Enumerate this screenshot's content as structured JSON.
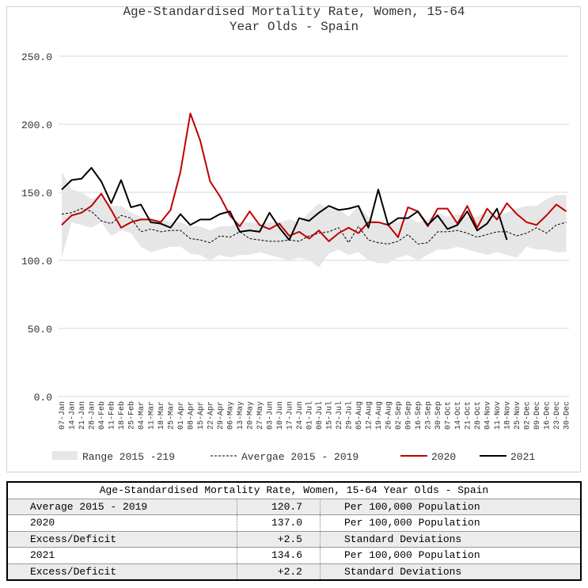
{
  "chart_data": {
    "type": "line",
    "title": "Age-Standardised Mortality Rate, Women, 15-64 Year Olds - Spain",
    "categories": [
      "07-Jan",
      "14-Jan",
      "21-Jan",
      "28-Jan",
      "04-Feb",
      "11-Feb",
      "18-Feb",
      "25-Feb",
      "04-Mar",
      "11-Mar",
      "18-Mar",
      "25-Mar",
      "01-Apr",
      "08-Apr",
      "15-Apr",
      "22-Apr",
      "29-Apr",
      "06-May",
      "13-May",
      "20-May",
      "27-May",
      "03-Jun",
      "10-Jun",
      "17-Jun",
      "24-Jun",
      "01-Jul",
      "08-Jul",
      "15-Jul",
      "22-Jul",
      "29-Jul",
      "05-Aug",
      "12-Aug",
      "19-Aug",
      "26-Aug",
      "02-Sep",
      "09-Sep",
      "16-Sep",
      "23-Sep",
      "30-Sep",
      "07-Oct",
      "14-Oct",
      "21-Oct",
      "28-Oct",
      "04-Nov",
      "11-Nov",
      "18-Nov",
      "25-Nov",
      "02-Dec",
      "09-Dec",
      "16-Dec",
      "23-Dec",
      "30-Dec"
    ],
    "series": [
      {
        "name": "Range 2015 -219",
        "type": "band",
        "color": "#e6e6e6",
        "low": [
          102,
          128,
          126,
          124,
          128,
          118,
          122,
          120,
          110,
          106,
          108,
          110,
          110,
          105,
          104,
          100,
          104,
          102,
          104,
          104,
          106,
          104,
          102,
          100,
          102,
          100,
          95,
          105,
          108,
          104,
          106,
          100,
          98,
          98,
          102,
          104,
          100,
          104,
          108,
          108,
          110,
          108,
          106,
          104,
          106,
          104,
          102,
          110,
          108,
          108,
          106,
          106
        ],
        "high": [
          165,
          152,
          150,
          145,
          148,
          140,
          140,
          135,
          132,
          130,
          130,
          128,
          128,
          125,
          125,
          122,
          125,
          125,
          128,
          128,
          127,
          128,
          128,
          130,
          128,
          135,
          142,
          138,
          138,
          132,
          140,
          132,
          128,
          128,
          128,
          132,
          128,
          130,
          135,
          132,
          134,
          132,
          132,
          136,
          133,
          135,
          138,
          140,
          140,
          145,
          148,
          148
        ]
      },
      {
        "name": "Avergae 2015 - 2019",
        "type": "line",
        "dashed": true,
        "color": "#000000",
        "values": [
          134,
          135,
          138,
          136,
          129,
          127,
          133,
          131,
          121,
          123,
          121,
          122,
          122,
          116,
          115,
          113,
          118,
          117,
          121,
          116,
          115,
          114,
          114,
          115,
          114,
          118,
          120,
          121,
          124,
          113,
          125,
          115,
          113,
          112,
          114,
          119,
          112,
          113,
          121,
          121,
          122,
          120,
          117,
          119,
          121,
          121,
          118,
          120,
          124,
          120,
          126,
          128
        ]
      },
      {
        "name": "2020",
        "type": "line",
        "color": "#c00000",
        "values": [
          126,
          133,
          135,
          140,
          149,
          137,
          124,
          128,
          130,
          130,
          128,
          137,
          165,
          208,
          188,
          158,
          147,
          133,
          125,
          136,
          126,
          123,
          127,
          118,
          121,
          116,
          122,
          114,
          120,
          124,
          120,
          128,
          128,
          126,
          117,
          139,
          136,
          125,
          138,
          138,
          127,
          140,
          124,
          138,
          130,
          142,
          134,
          128,
          126,
          133,
          141,
          136
        ]
      },
      {
        "name": "2021",
        "type": "line",
        "color": "#000000",
        "values": [
          152,
          159,
          160,
          168,
          158,
          142,
          159,
          139,
          141,
          128,
          127,
          124,
          134,
          126,
          130,
          130,
          134,
          136,
          121,
          122,
          121,
          135,
          124,
          115,
          131,
          129,
          135,
          140,
          137,
          138,
          140,
          124,
          152,
          126,
          131,
          131,
          136,
          126,
          133,
          123,
          126,
          136,
          122,
          127,
          138,
          115,
          null,
          null,
          null,
          null,
          null,
          null
        ]
      }
    ],
    "ylim": [
      0,
      250
    ],
    "yticks": [
      {
        "value": 0,
        "label": "0.0"
      },
      {
        "value": 50,
        "label": "50.0"
      },
      {
        "value": 100,
        "label": "100.0"
      },
      {
        "value": 150,
        "label": "150.0"
      },
      {
        "value": 200,
        "label": "200.0"
      },
      {
        "value": 250,
        "label": "250.0"
      }
    ],
    "grid": true,
    "legend": "bottom"
  },
  "table": {
    "title": "Age-Standardised Mortality Rate, Women, 15-64 Year Olds - Spain",
    "rows": [
      [
        "Average 2015 - 2019",
        "120.7",
        "Per 100,000 Population"
      ],
      [
        "2020",
        "137.0",
        "Per 100,000 Population"
      ],
      [
        "Excess/Deficit",
        "+2.5",
        "Standard Deviations"
      ],
      [
        "2021",
        "134.6",
        "Per 100,000 Population"
      ],
      [
        "Excess/Deficit",
        "+2.2",
        "Standard Deviations"
      ]
    ]
  }
}
